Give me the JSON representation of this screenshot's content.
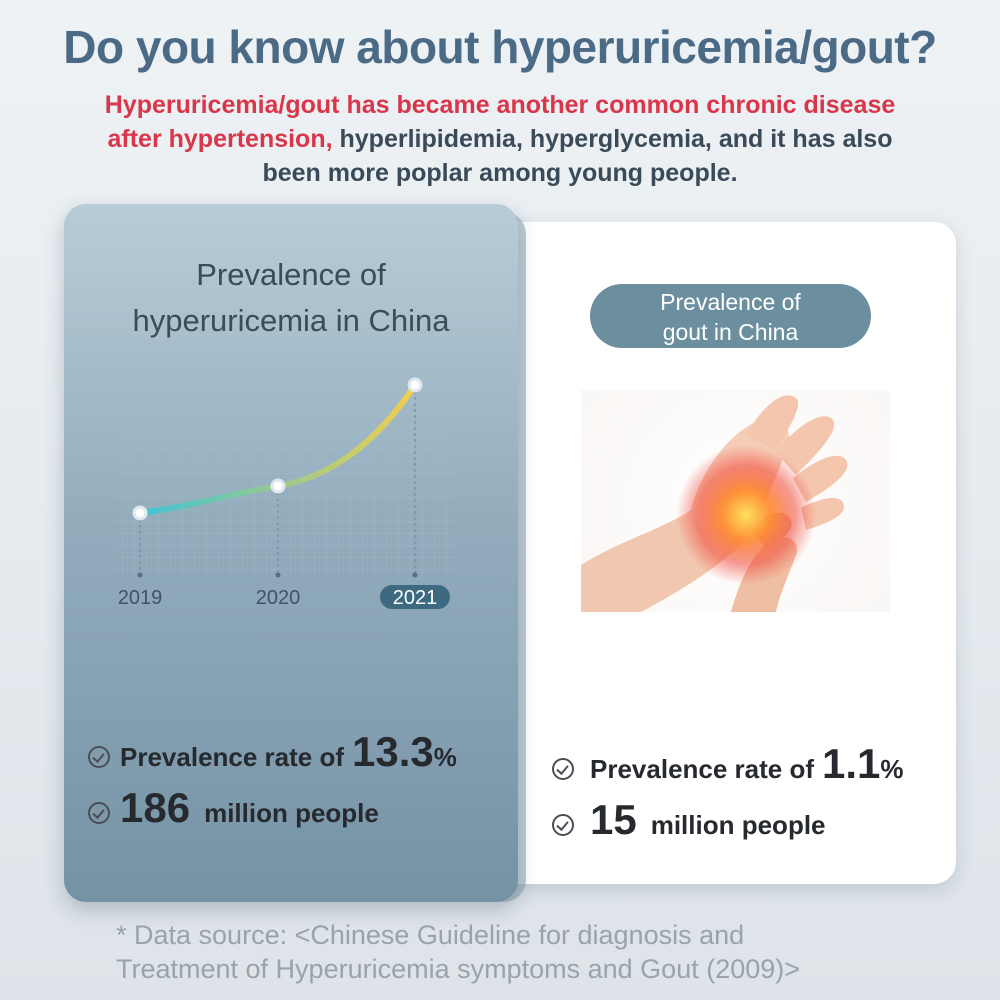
{
  "title": "Do you know about hyperuricemia/gout?",
  "intro": {
    "red_line1": "Hyperuricemia/gout has became another common chronic disease",
    "red_line2": "after hypertension,",
    "dark_line2": " hyperlipidemia, hyperglycemia, and it has also",
    "dark_line3": "been more poplar among young people."
  },
  "left_card": {
    "title_line1": "Prevalence of",
    "title_line2": "hyperuricemia in China",
    "stat1": {
      "prefix": "Prevalence rate of",
      "value": "13.3",
      "unit": "%"
    },
    "stat2": {
      "value": "186",
      "suffix": "million people"
    }
  },
  "chart_data": {
    "type": "line",
    "x": [
      "2019",
      "2020",
      "2021"
    ],
    "highlighted_x": "2021",
    "colors": {
      "start": "#3fc3d6",
      "end": "#f1cf4c",
      "highlight_tag": "#3d6a80"
    }
  },
  "right_card": {
    "pill_line1": "Prevalence of",
    "pill_line2": "gout in China",
    "image": "hand-pain-illustration",
    "stat1": {
      "prefix": "Prevalence rate of",
      "value": "1.1",
      "unit": "%"
    },
    "stat2": {
      "value": "15",
      "suffix": "million people"
    }
  },
  "footnote": {
    "line1": "*  Data source: <Chinese Guideline for diagnosis and",
    "line2": "Treatment of Hyperuricemia symptoms and Gout (2009)>"
  },
  "colors": {
    "title": "#4a6a86",
    "accent_red": "#d9364a",
    "pill": "#6c8fa0"
  }
}
